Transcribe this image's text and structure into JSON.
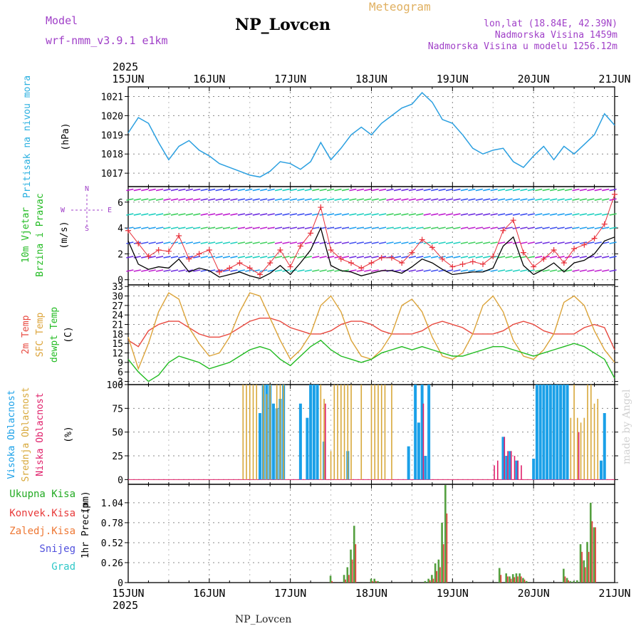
{
  "header": {
    "model_label": "Model",
    "model_name": "wrf-nmm_v3.9.1 e1km",
    "station": "NP_Lovcen",
    "product": "Meteogram",
    "lonlat": "lon,lat (18.84E, 42.39N)",
    "altitude": "Nadmorska Visina 1459m",
    "altitude_model": "Nadmorska Visina u modelu 1256.12m"
  },
  "footer": {
    "station": "NP_Lovcen",
    "credit": "made by Angel"
  },
  "colors": {
    "pressure": "#2a9fe0",
    "wind_speed": "#000000",
    "wind_gust": "#e8303a",
    "temp_2m": "#e84a40",
    "temp_sfc": "#dca43a",
    "dewpoint": "#22bb22",
    "cloud_high": "#1aa0e8",
    "cloud_mid": "#d8a83a",
    "cloud_low": "#e0206a",
    "precip_total": "#55a040",
    "precip_conv": "#e83a3a",
    "ylabel_pressure": "#2ab0e0",
    "ylabel_wind": "#22bb22",
    "ylabel_dir": "#a040c8",
    "title_model": "#a040c8",
    "title_meteogram": "#e0b060"
  },
  "chart_data": [
    {
      "type": "line",
      "panel": "pressure",
      "ylabel": [
        "Pritisak na nivou mora",
        "(hPa)"
      ],
      "yticks": [
        1017,
        1018,
        1019,
        1020,
        1021
      ],
      "ylim": [
        1016.3,
        1021.5
      ],
      "xticks": [
        "15JUN",
        "16JUN",
        "17JUN",
        "18JUN",
        "19JUN",
        "20JUN",
        "21JUN"
      ],
      "xticks_top_year": "2025",
      "x_hours": [
        0,
        3,
        6,
        9,
        12,
        15,
        18,
        21,
        24,
        27,
        30,
        33,
        36,
        39,
        42,
        45,
        48,
        51,
        54,
        57,
        60,
        63,
        66,
        69,
        72,
        75,
        78,
        81,
        84,
        87,
        90,
        93,
        96,
        99,
        102,
        105,
        108,
        111,
        114,
        117,
        120,
        123,
        126,
        129,
        132,
        135,
        138,
        141,
        144
      ],
      "series": [
        {
          "values": [
            1019.1,
            1019.9,
            1019.6,
            1018.6,
            1017.7,
            1018.4,
            1018.7,
            1018.2,
            1017.9,
            1017.5,
            1017.3,
            1017.1,
            1016.9,
            1016.8,
            1017.1,
            1017.6,
            1017.5,
            1017.2,
            1017.6,
            1018.6,
            1017.7,
            1018.3,
            1019.0,
            1019.4,
            1019.0,
            1019.6,
            1020.0,
            1020.4,
            1020.6,
            1021.2,
            1020.7,
            1019.8,
            1019.6,
            1019.0,
            1018.3,
            1018.0,
            1018.2,
            1018.3,
            1017.6,
            1017.3,
            1017.9,
            1018.4,
            1017.7,
            1018.4,
            1018.0,
            1018.5,
            1019.0,
            1020.1,
            1019.5
          ]
        }
      ]
    },
    {
      "type": "line",
      "panel": "wind",
      "ylabel": [
        "10m Vjetar",
        "Brzina i Pravac",
        "(m/s)"
      ],
      "direction_legend": [
        "N",
        "W",
        "E",
        "S"
      ],
      "yticks": [
        0,
        2,
        4,
        6
      ],
      "ylim": [
        -0.4,
        7.2
      ],
      "x_hours": [
        0,
        3,
        6,
        9,
        12,
        15,
        18,
        21,
        24,
        27,
        30,
        33,
        36,
        39,
        42,
        45,
        48,
        51,
        54,
        57,
        60,
        63,
        66,
        69,
        72,
        75,
        78,
        81,
        84,
        87,
        90,
        93,
        96,
        99,
        102,
        105,
        108,
        111,
        114,
        117,
        120,
        123,
        126,
        129,
        132,
        135,
        138,
        141,
        144
      ],
      "series": [
        {
          "name": "speed",
          "values": [
            3.0,
            1.2,
            0.8,
            1.0,
            0.9,
            1.6,
            0.6,
            0.9,
            0.7,
            0.2,
            0.4,
            0.6,
            0.3,
            0.1,
            0.5,
            1.1,
            0.4,
            1.3,
            2.3,
            4.0,
            1.1,
            0.7,
            0.6,
            0.3,
            0.5,
            0.7,
            0.7,
            0.5,
            1.0,
            1.6,
            1.3,
            0.8,
            0.4,
            0.5,
            0.6,
            0.6,
            0.9,
            2.6,
            3.3,
            1.1,
            0.4,
            0.8,
            1.3,
            0.6,
            1.3,
            1.5,
            2.0,
            3.0,
            3.3
          ]
        },
        {
          "name": "gust",
          "values": [
            3.8,
            2.8,
            1.8,
            2.3,
            2.2,
            3.4,
            1.6,
            2.0,
            2.3,
            0.6,
            0.9,
            1.3,
            0.9,
            0.4,
            1.3,
            2.3,
            1.0,
            2.6,
            3.6,
            5.6,
            2.3,
            1.6,
            1.3,
            0.9,
            1.3,
            1.7,
            1.7,
            1.3,
            2.1,
            3.1,
            2.5,
            1.6,
            1.0,
            1.2,
            1.4,
            1.2,
            1.8,
            3.8,
            4.6,
            2.1,
            1.0,
            1.6,
            2.3,
            1.3,
            2.4,
            2.7,
            3.2,
            4.3,
            6.6
          ]
        }
      ]
    },
    {
      "type": "line",
      "panel": "temperature",
      "ylabel": [
        "2m Temp",
        "SFC Temp",
        "dewpt Temp",
        "(C)"
      ],
      "yticks": [
        3,
        6,
        9,
        12,
        15,
        18,
        21,
        24,
        27,
        30,
        33
      ],
      "ylim": [
        2,
        33.5
      ],
      "x_hours": [
        0,
        3,
        6,
        9,
        12,
        15,
        18,
        21,
        24,
        27,
        30,
        33,
        36,
        39,
        42,
        45,
        48,
        51,
        54,
        57,
        60,
        63,
        66,
        69,
        72,
        75,
        78,
        81,
        84,
        87,
        90,
        93,
        96,
        99,
        102,
        105,
        108,
        111,
        114,
        117,
        120,
        123,
        126,
        129,
        132,
        135,
        138,
        141,
        144
      ],
      "series": [
        {
          "name": "2m Temp",
          "values": [
            16,
            14,
            19,
            21,
            22,
            22,
            20,
            18,
            17,
            17,
            18,
            20,
            22,
            23,
            23,
            22,
            20,
            19,
            18,
            18,
            19,
            21,
            22,
            22,
            21,
            19,
            18,
            18,
            18,
            19,
            21,
            22,
            21,
            20,
            18,
            18,
            18,
            19,
            21,
            22,
            21,
            19,
            18,
            18,
            18,
            20,
            21,
            20,
            13
          ]
        },
        {
          "name": "SFC Temp",
          "values": [
            17,
            7,
            15,
            25,
            31,
            29,
            20,
            15,
            11,
            12,
            17,
            25,
            31,
            30,
            23,
            16,
            10,
            13,
            18,
            27,
            30,
            25,
            16,
            11,
            10,
            13,
            18,
            27,
            29,
            25,
            17,
            11,
            10,
            12,
            18,
            27,
            30,
            25,
            16,
            11,
            10,
            13,
            18,
            28,
            30,
            27,
            19,
            13,
            9
          ]
        },
        {
          "name": "dewpt Temp",
          "values": [
            10,
            6,
            3,
            5,
            9,
            11,
            10,
            9,
            7,
            8,
            9,
            11,
            13,
            14,
            13,
            10,
            8,
            11,
            14,
            16,
            13,
            11,
            10,
            9,
            10,
            12,
            13,
            14,
            13,
            14,
            13,
            12,
            11,
            11,
            12,
            13,
            14,
            14,
            13,
            12,
            11,
            12,
            13,
            14,
            15,
            14,
            12,
            10,
            4
          ]
        }
      ]
    },
    {
      "type": "bar",
      "panel": "cloud",
      "ylabel": [
        "Visoka Oblacnost",
        "Srednja Oblacnost",
        "Niska Oblacnost",
        "(%)"
      ],
      "yticks": [
        0,
        25,
        50,
        75,
        100
      ],
      "ylim": [
        -5,
        100
      ],
      "x_hours": [
        34,
        35,
        36,
        37,
        38,
        39,
        40,
        41,
        42,
        43,
        44,
        45,
        46,
        49,
        50,
        51,
        52,
        53,
        54,
        55,
        56,
        57,
        58,
        59,
        60,
        61,
        62,
        63,
        64,
        65,
        66,
        67,
        68,
        69,
        70,
        71,
        72,
        73,
        74,
        75,
        76,
        77,
        78,
        81,
        82,
        83,
        84,
        85,
        86,
        87,
        88,
        89,
        90,
        91,
        92,
        93,
        94,
        95,
        96,
        108,
        109,
        110,
        111,
        112,
        113,
        114,
        115,
        116,
        117,
        120,
        121,
        122,
        123,
        124,
        125,
        126,
        127,
        128,
        129,
        130,
        131,
        132,
        133,
        134,
        135,
        136,
        137,
        138,
        139,
        140,
        141
      ],
      "series": [
        {
          "name": "Visoka Oblacnost",
          "values": [
            0,
            0,
            0,
            0,
            0,
            70,
            100,
            100,
            100,
            80,
            75,
            85,
            100,
            0,
            0,
            80,
            0,
            65,
            100,
            100,
            100,
            0,
            40,
            0,
            0,
            0,
            0,
            0,
            0,
            30,
            0,
            0,
            0,
            0,
            0,
            0,
            0,
            0,
            0,
            0,
            0,
            0,
            0,
            0,
            0,
            35,
            0,
            100,
            60,
            100,
            25,
            100,
            0,
            0,
            0,
            0,
            0,
            0,
            0,
            0,
            0,
            0,
            45,
            25,
            30,
            0,
            20,
            0,
            0,
            22,
            100,
            100,
            100,
            100,
            100,
            100,
            100,
            100,
            100,
            100,
            0,
            0,
            0,
            0,
            0,
            0,
            0,
            0,
            0,
            20,
            70
          ]
        },
        {
          "name": "Srednja Oblacnost",
          "values": [
            100,
            100,
            100,
            100,
            100,
            0,
            100,
            90,
            100,
            0,
            100,
            100,
            100,
            0,
            0,
            0,
            0,
            0,
            0,
            0,
            0,
            100,
            85,
            0,
            30,
            100,
            100,
            100,
            100,
            100,
            100,
            0,
            0,
            100,
            0,
            0,
            100,
            100,
            100,
            100,
            100,
            0,
            100,
            0,
            0,
            0,
            0,
            0,
            0,
            0,
            0,
            0,
            0,
            0,
            0,
            0,
            0,
            0,
            0,
            0,
            0,
            0,
            0,
            0,
            0,
            0,
            0,
            0,
            0,
            0,
            0,
            0,
            0,
            0,
            0,
            0,
            0,
            0,
            0,
            0,
            65,
            100,
            65,
            60,
            65,
            100,
            100,
            80,
            85,
            0,
            0
          ]
        },
        {
          "name": "Niska Oblacnost",
          "values": [
            0,
            0,
            0,
            0,
            0,
            0,
            0,
            0,
            0,
            0,
            0,
            0,
            0,
            0,
            0,
            0,
            0,
            0,
            0,
            0,
            0,
            0,
            80,
            0,
            0,
            0,
            0,
            0,
            0,
            0,
            0,
            0,
            0,
            0,
            0,
            0,
            0,
            0,
            0,
            0,
            0,
            0,
            0,
            0,
            0,
            0,
            0,
            0,
            0,
            80,
            0,
            0,
            0,
            0,
            0,
            0,
            0,
            0,
            0,
            15,
            20,
            0,
            45,
            30,
            30,
            25,
            20,
            15,
            0,
            0,
            0,
            0,
            0,
            0,
            0,
            0,
            0,
            0,
            0,
            0,
            0,
            0,
            50,
            0,
            0,
            0,
            0,
            0,
            0,
            0,
            0
          ]
        }
      ]
    },
    {
      "type": "bar",
      "panel": "precip",
      "ylabel": [
        "1hr Precip",
        "(mm)"
      ],
      "legend": [
        "Ukupna Kisa",
        "Konvek.Kisa",
        "Zaledj.Kisa",
        "Snijeg",
        "Grad"
      ],
      "legend_colors": [
        "#22aa22",
        "#e83a3a",
        "#ee7733",
        "#5050dd",
        "#30c8c8"
      ],
      "yticks": [
        0.0,
        0.26,
        0.52,
        0.78,
        1.04
      ],
      "ylim": [
        0,
        1.28
      ],
      "x_hours": [
        60,
        64,
        65,
        66,
        67,
        72,
        73,
        74,
        88,
        89,
        90,
        91,
        92,
        93,
        94,
        110,
        112,
        113,
        114,
        115,
        116,
        117,
        118,
        129,
        130,
        131,
        132,
        133,
        134,
        135,
        136,
        137,
        138
      ],
      "series": [
        {
          "name": "Ukupna Kisa",
          "values": [
            0.09,
            0.1,
            0.2,
            0.43,
            0.74,
            0.05,
            0.05,
            0.02,
            0.02,
            0.05,
            0.1,
            0.25,
            0.3,
            0.78,
            1.27,
            0.19,
            0.12,
            0.08,
            0.11,
            0.12,
            0.12,
            0.06,
            0.02,
            0.18,
            0.06,
            0.02,
            0.02,
            0.03,
            0.5,
            0.29,
            0.53,
            1.04,
            0.72
          ]
        },
        {
          "name": "Konvek.Kisa",
          "values": [
            0.02,
            0.04,
            0.1,
            0.3,
            0.5,
            0.02,
            0.02,
            0.0,
            0.0,
            0.03,
            0.05,
            0.15,
            0.2,
            0.5,
            0.9,
            0.1,
            0.08,
            0.05,
            0.07,
            0.08,
            0.08,
            0.04,
            0.0,
            0.08,
            0.03,
            0.0,
            0.0,
            0.0,
            0.4,
            0.2,
            0.4,
            0.8,
            0.72
          ]
        }
      ]
    }
  ]
}
